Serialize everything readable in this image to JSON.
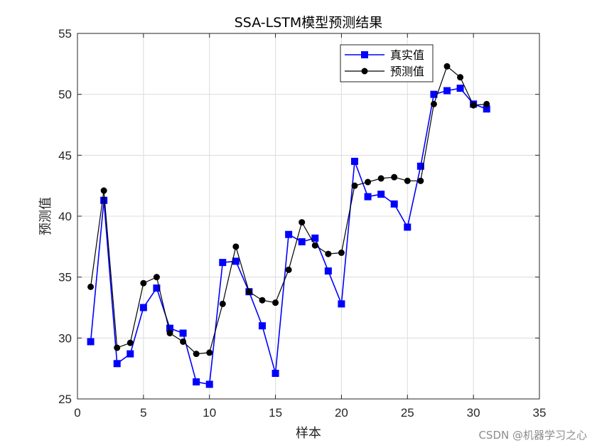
{
  "chart_data": {
    "type": "line",
    "title": "SSA-LSTM模型预测结果",
    "xlabel": "样本",
    "ylabel": "预测值",
    "xlim": [
      0,
      35
    ],
    "ylim": [
      25,
      55
    ],
    "xticks": [
      0,
      5,
      10,
      15,
      20,
      25,
      30,
      35
    ],
    "yticks": [
      25,
      30,
      35,
      40,
      45,
      50,
      55
    ],
    "grid": true,
    "legend_position": "top-right",
    "x": [
      1,
      2,
      3,
      4,
      5,
      6,
      7,
      8,
      9,
      10,
      11,
      12,
      13,
      14,
      15,
      16,
      17,
      18,
      19,
      20,
      21,
      22,
      23,
      24,
      25,
      26,
      27,
      28,
      29,
      30,
      31
    ],
    "series": [
      {
        "name": "真实值",
        "color": "#0000ff",
        "marker": "square",
        "values": [
          29.7,
          41.3,
          27.9,
          28.7,
          32.5,
          34.1,
          30.8,
          30.4,
          26.4,
          26.2,
          36.2,
          36.3,
          33.8,
          31.0,
          27.1,
          38.5,
          37.9,
          38.2,
          35.5,
          32.8,
          44.5,
          41.6,
          41.8,
          41.0,
          39.1,
          44.1,
          50.0,
          50.3,
          50.5,
          49.2,
          48.8
        ]
      },
      {
        "name": "预测值",
        "color": "#000000",
        "marker": "circle",
        "values": [
          34.2,
          42.1,
          29.2,
          29.6,
          34.5,
          35.0,
          30.4,
          29.7,
          28.7,
          28.8,
          32.8,
          37.5,
          33.8,
          33.1,
          32.9,
          35.6,
          39.5,
          37.6,
          36.9,
          37.0,
          42.5,
          42.8,
          43.1,
          43.2,
          42.9,
          42.9,
          49.2,
          52.3,
          51.4,
          49.1,
          49.2
        ]
      }
    ]
  },
  "watermark": "CSDN @机器学习之心"
}
